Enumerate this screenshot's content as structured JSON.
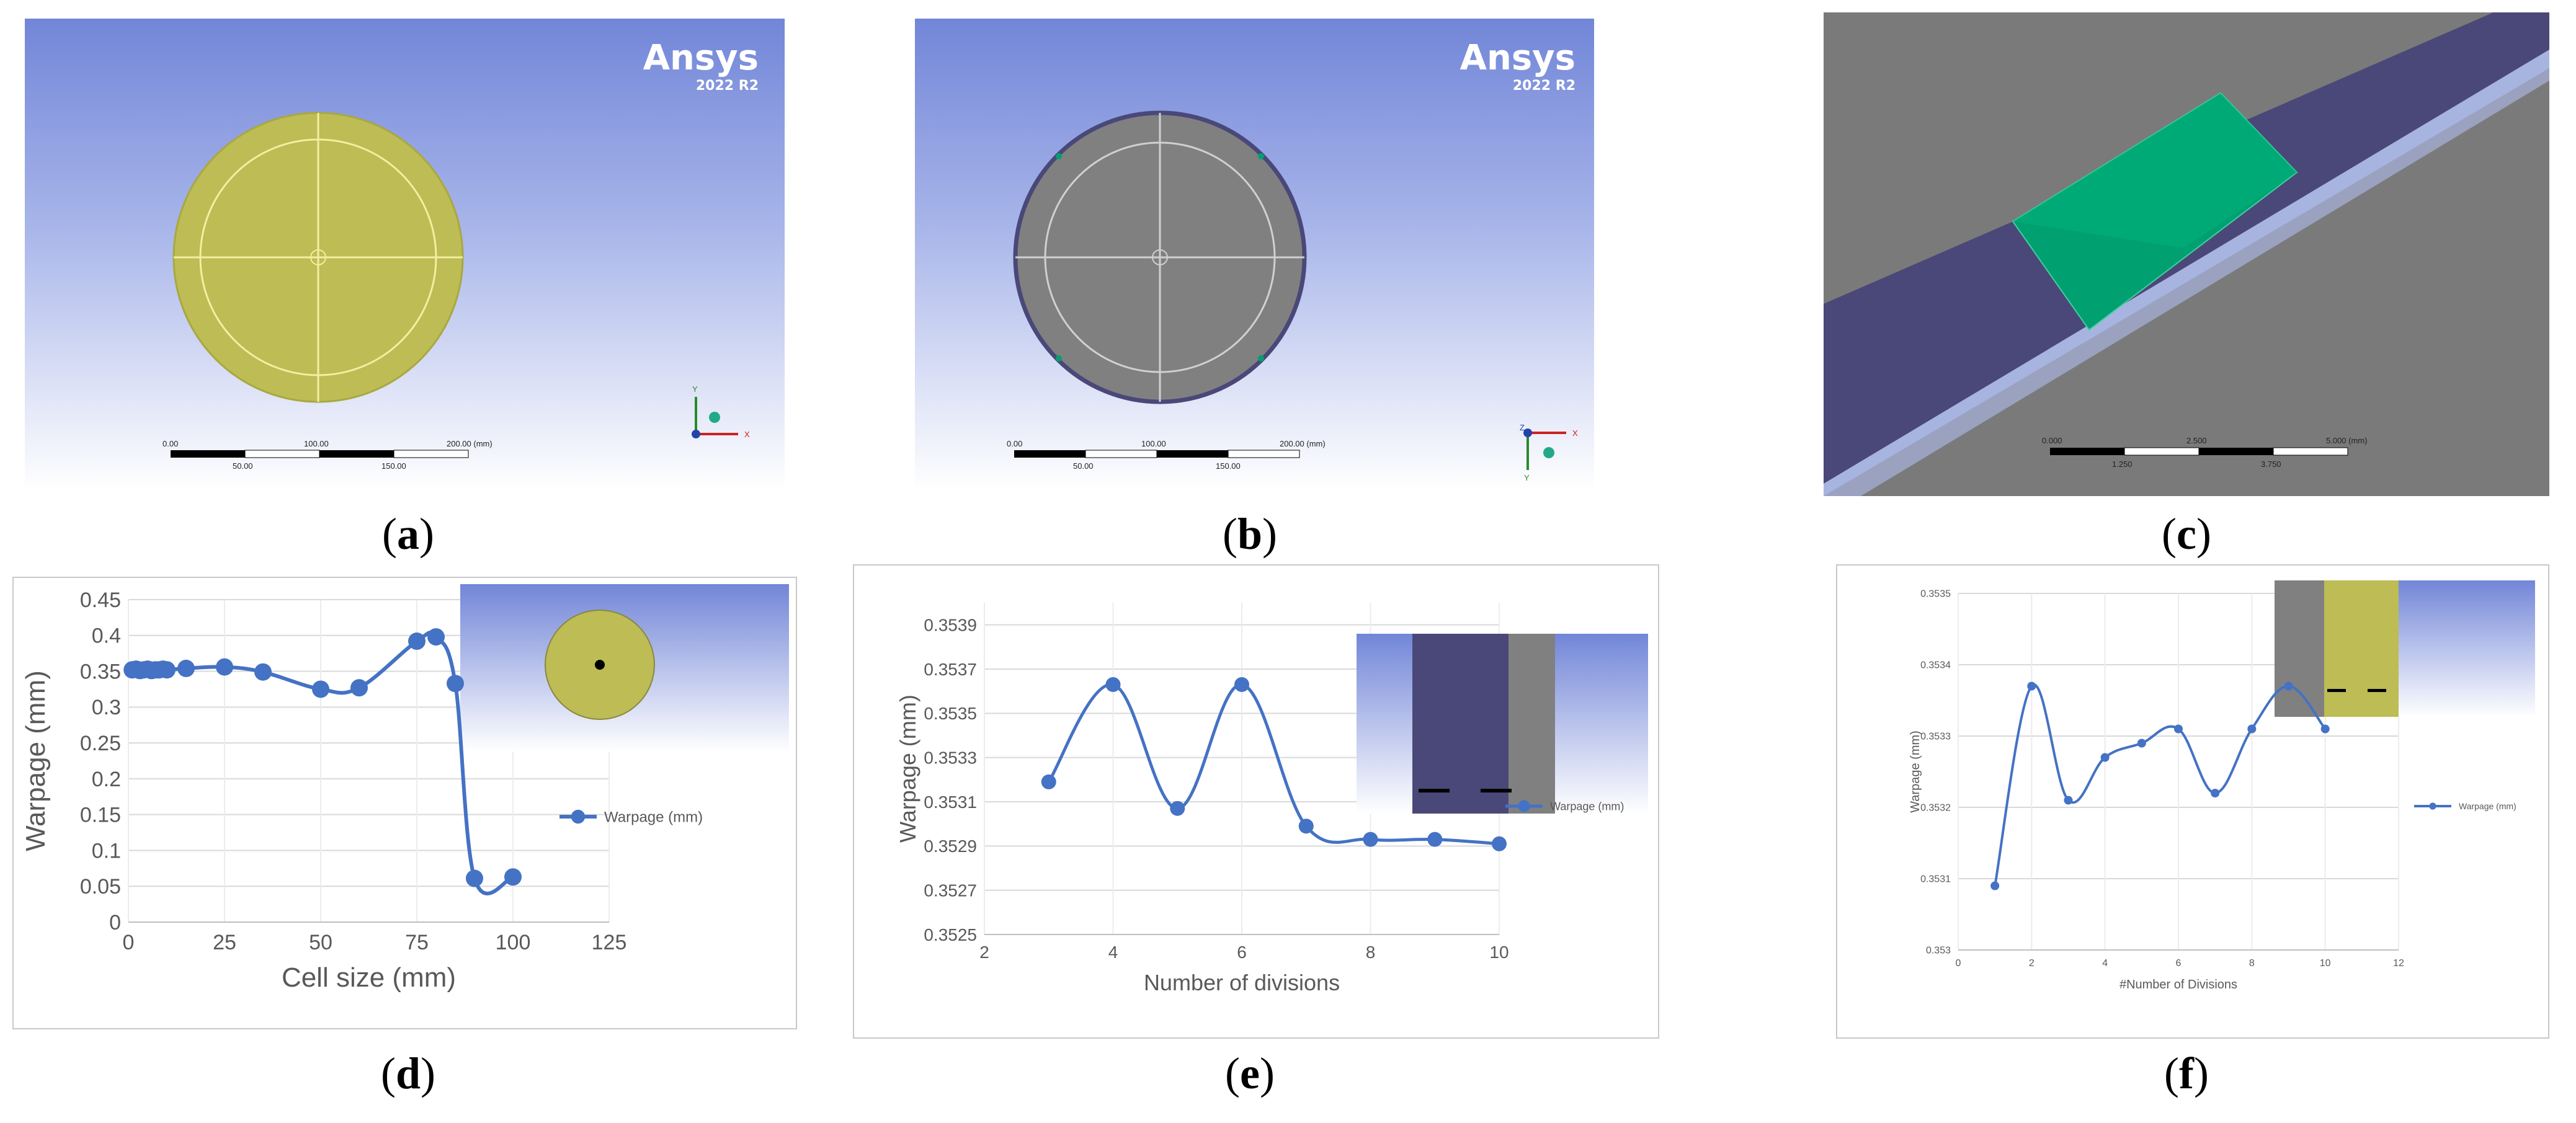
{
  "brand": {
    "name": "Ansys",
    "version": "2022 R2"
  },
  "captions": {
    "a": "a",
    "b": "b",
    "c": "c",
    "d": "d",
    "e": "e",
    "f": "f"
  },
  "scalebars": {
    "a": {
      "top": [
        "0.00",
        "100.00",
        "200.00 (mm)"
      ],
      "bottom": [
        "50.00",
        "150.00"
      ]
    },
    "b": {
      "top": [
        "0.00",
        "100.00",
        "200.00 (mm)"
      ],
      "bottom": [
        "50.00",
        "150.00"
      ]
    },
    "c": {
      "top": [
        "0.000",
        "2.500",
        "5.000 (mm)"
      ],
      "bottom": [
        "1.250",
        "3.750"
      ]
    }
  },
  "triad": {
    "x": "X",
    "y": "Y",
    "z": "Z"
  },
  "colors": {
    "series": "#4472c4",
    "circle_yellow": "#bdbc55",
    "circle_gray": "#808080",
    "band_purple": "#4a4878",
    "mesh_green": "#00a070"
  },
  "chart_data": [
    {
      "panel": "d",
      "type": "line",
      "xlabel": "Cell size (mm)",
      "ylabel": "Warpage (mm)",
      "xlim": [
        0,
        125
      ],
      "ylim": [
        0,
        0.45
      ],
      "xticks": [
        "0",
        "25",
        "50",
        "75",
        "100",
        "125"
      ],
      "yticks": [
        "0",
        "0.05",
        "0.1",
        "0.15",
        "0.2",
        "0.25",
        "0.3",
        "0.35",
        "0.4",
        "0.45"
      ],
      "grid": true,
      "legend": "right",
      "series": [
        {
          "name": "Warpage (mm)",
          "x": [
            1,
            2,
            3,
            4,
            5,
            6,
            7,
            8,
            9,
            10,
            15,
            25,
            35,
            50,
            60,
            75,
            80,
            85,
            90,
            100
          ],
          "y": [
            0.352,
            0.353,
            0.351,
            0.352,
            0.353,
            0.351,
            0.352,
            0.352,
            0.353,
            0.352,
            0.354,
            0.356,
            0.349,
            0.325,
            0.327,
            0.392,
            0.398,
            0.333,
            0.061,
            0.063
          ]
        }
      ]
    },
    {
      "panel": "e",
      "type": "line",
      "xlabel": "Number of divisions",
      "ylabel": "Warpage (mm)",
      "xlim": [
        2,
        10
      ],
      "ylim": [
        0.3525,
        0.354
      ],
      "xticks": [
        "2",
        "4",
        "6",
        "8",
        "10"
      ],
      "yticks": [
        "0.3525",
        "0.3527",
        "0.3529",
        "0.3531",
        "0.3533",
        "0.3535",
        "0.3537",
        "0.3539"
      ],
      "grid": true,
      "legend": "right",
      "series": [
        {
          "name": "Warpage (mm)",
          "x": [
            3,
            4,
            5,
            6,
            7,
            8,
            9,
            10
          ],
          "y": [
            0.35319,
            0.35363,
            0.35307,
            0.35363,
            0.35299,
            0.35293,
            0.35293,
            0.35291
          ]
        }
      ]
    },
    {
      "panel": "f",
      "type": "line",
      "xlabel": "#Number of Divisions",
      "ylabel": "Warpage (mm)",
      "xlim": [
        0,
        12
      ],
      "ylim": [
        0.353,
        0.3535
      ],
      "xticks": [
        "0",
        "2",
        "4",
        "6",
        "8",
        "10",
        "12"
      ],
      "yticks": [
        "0.353",
        "0.3531",
        "0.3532",
        "0.3533",
        "0.3534",
        "0.3535"
      ],
      "grid": true,
      "legend": "right",
      "series": [
        {
          "name": "Warpage (mm)",
          "x": [
            1,
            2,
            3,
            4,
            5,
            6,
            7,
            8,
            9,
            10
          ],
          "y": [
            0.35309,
            0.35337,
            0.35321,
            0.35327,
            0.35329,
            0.35331,
            0.35322,
            0.35331,
            0.35337,
            0.35331
          ]
        }
      ]
    }
  ]
}
